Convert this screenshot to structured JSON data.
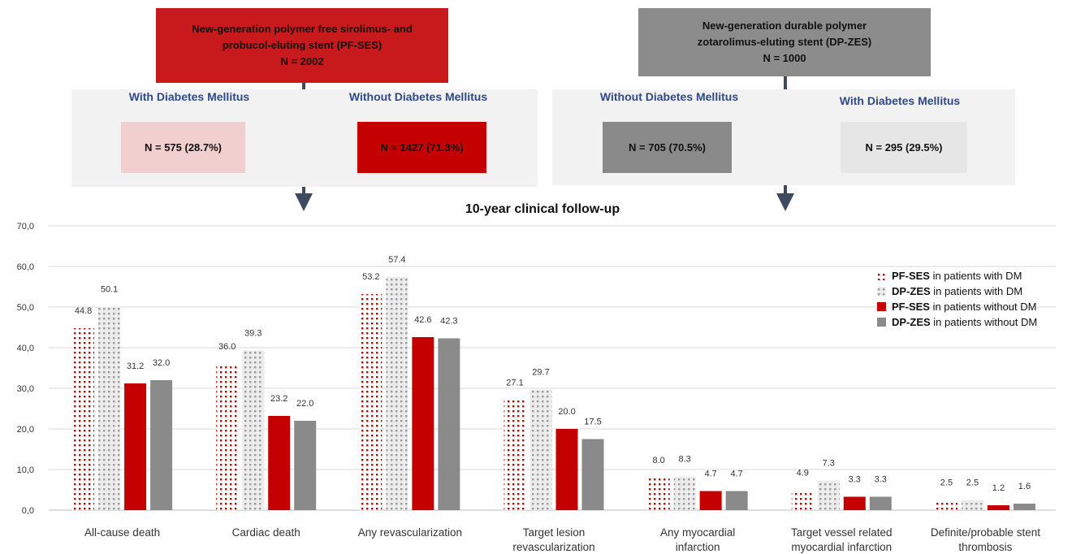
{
  "header": {
    "pf_box": {
      "line1": "New-generation polymer free sirolimus- and",
      "line2": "probucol-eluting stent (PF-SES)",
      "line3": "N = 2002",
      "color": "#c8191d"
    },
    "dp_box": {
      "line1": "New-generation durable polymer",
      "line2": "zotarolimus-eluting stent (DP-ZES)",
      "line3": "N = 1000",
      "color": "#8c8c8c"
    },
    "left_panel": {
      "with_dm_label": "With Diabetes Mellitus",
      "with_dm_n": "N = 575 (28.7%)",
      "without_dm_label": "Without Diabetes Mellitus",
      "without_dm_n": "N = 1427 (71.3%)"
    },
    "right_panel": {
      "without_dm_label": "Without Diabetes Mellitus",
      "without_dm_n": "N = 705 (70.5%)",
      "with_dm_label": "With Diabetes Mellitus",
      "with_dm_n": "N = 295 (29.5%)"
    },
    "colors": {
      "panel_bg": "#f2f2f2",
      "pink": "#f2cfcf",
      "red": "#c40000",
      "gray": "#8a8a8a",
      "light_gray": "#e6e6e6",
      "arrow": "#3d4a60",
      "title_blue": "#2f4a86"
    }
  },
  "chart_data": {
    "type": "bar",
    "title": "10-year clinical follow-up",
    "ylim": [
      0,
      70
    ],
    "yticks": [
      "0,0",
      "10,0",
      "20,0",
      "30,0",
      "40,0",
      "50,0",
      "60,0",
      "70,0"
    ],
    "grid": true,
    "legend_position": "top-right",
    "categories": [
      [
        "All-cause death"
      ],
      [
        "Cardiac death"
      ],
      [
        "Any revascularization"
      ],
      [
        "Target lesion",
        "revascularization"
      ],
      [
        "Any myocardial",
        "infarction"
      ],
      [
        "Target vessel related",
        "myocardial infarction"
      ],
      [
        "Definite/probable stent",
        "thrombosis"
      ]
    ],
    "series": [
      {
        "name_bold": "PF-SES",
        "name_rest": " in patients with DM",
        "style": "dotted-red",
        "color": "#c40000",
        "values": [
          44.8,
          36.0,
          53.2,
          27.1,
          8.0,
          4.9,
          2.5
        ],
        "labels": [
          "44.8",
          "36.0",
          "53.2",
          "27.1",
          "8.0",
          "4.9",
          "2.5"
        ]
      },
      {
        "name_bold": "DP-ZES",
        "name_rest": " in patients with DM",
        "style": "dotted-gray",
        "color": "#8a8a8a",
        "values": [
          50.1,
          39.3,
          57.4,
          29.7,
          8.3,
          7.3,
          2.5
        ],
        "labels": [
          "50.1",
          "39.3",
          "57.4",
          "29.7",
          "8.3",
          "7.3",
          "2.5"
        ]
      },
      {
        "name_bold": "PF-SES",
        "name_rest": " in patients without DM",
        "style": "solid-red",
        "color": "#c40000",
        "values": [
          31.2,
          23.2,
          42.6,
          20.0,
          4.7,
          3.3,
          1.2
        ],
        "labels": [
          "31.2",
          "23.2",
          "42.6",
          "20.0",
          "4.7",
          "3.3",
          "1.2"
        ]
      },
      {
        "name_bold": "DP-ZES",
        "name_rest": " in patients without DM",
        "style": "solid-gray",
        "color": "#8a8a8a",
        "values": [
          32.0,
          22.0,
          42.3,
          17.5,
          4.7,
          3.3,
          1.6
        ],
        "labels": [
          "32.0",
          "22.0",
          "42.3",
          "17.5",
          "4.7",
          "3.3",
          "1.6"
        ]
      }
    ]
  }
}
